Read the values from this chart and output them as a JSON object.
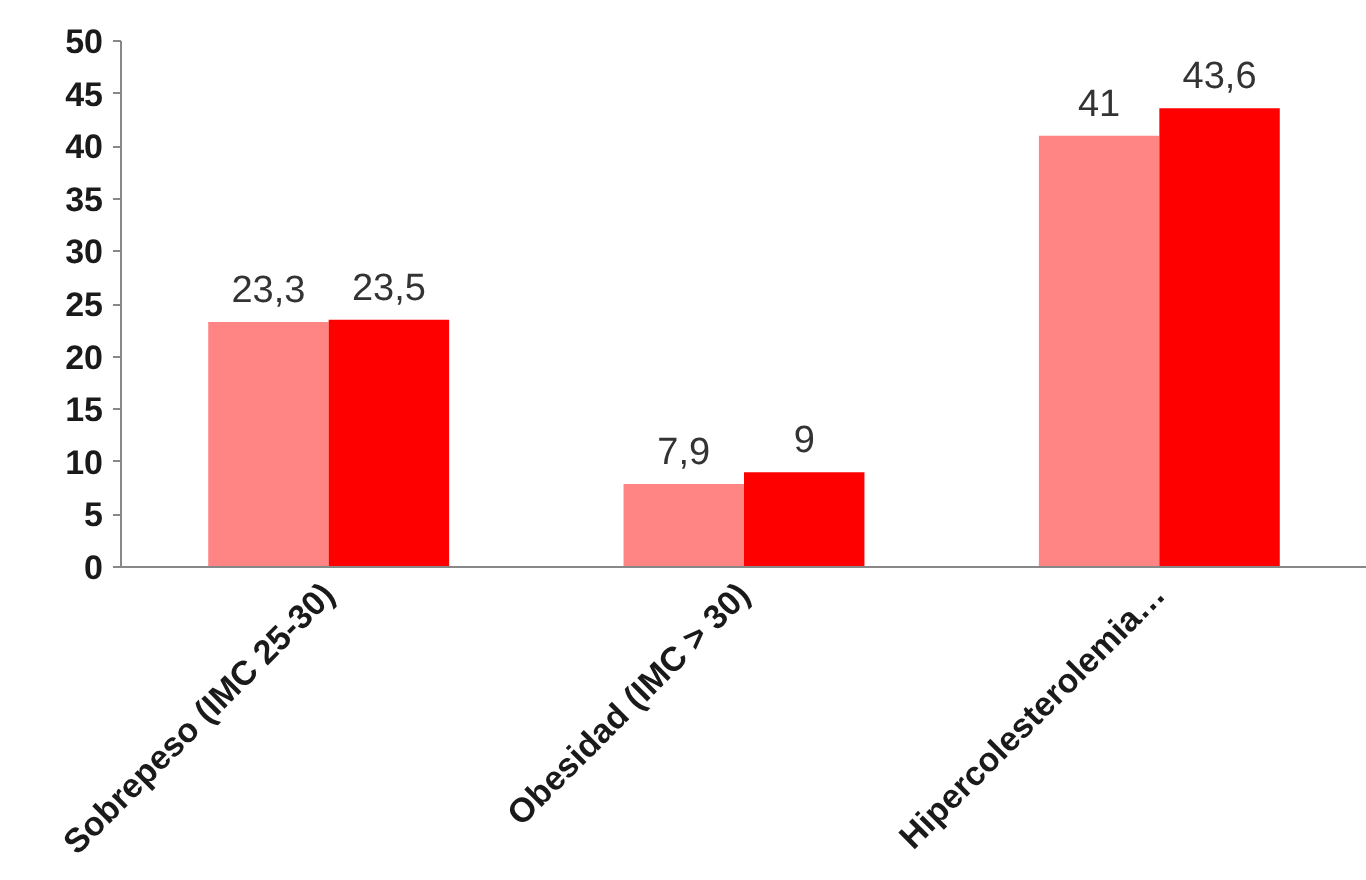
{
  "chart_data": {
    "type": "bar",
    "categories": [
      "Sobrepeso (IMC 25-30)",
      "Obesidad (IMC > 30)",
      "Hipercolesterolemia…"
    ],
    "series": [
      {
        "color": "#ff8585",
        "values": [
          23.3,
          7.9,
          41
        ],
        "value_labels": [
          "23,3",
          "7,9",
          "41"
        ]
      },
      {
        "color": "#ff0000",
        "values": [
          23.5,
          9,
          43.6
        ],
        "value_labels": [
          "23,5",
          "9",
          "43,6"
        ]
      }
    ],
    "ylim": [
      0,
      50
    ],
    "yticks": [
      0,
      5,
      10,
      15,
      20,
      25,
      30,
      35,
      40,
      45,
      50
    ],
    "grid": false
  }
}
